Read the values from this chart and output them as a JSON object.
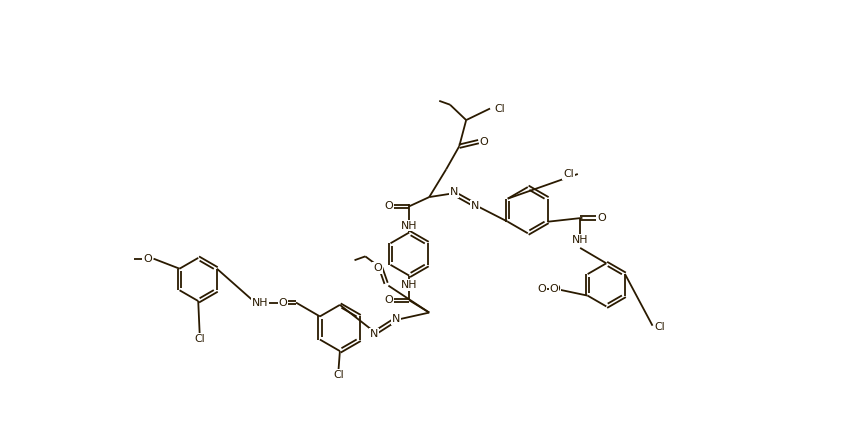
{
  "bg_color": "#ffffff",
  "bond_color": "#2a1a00",
  "figsize": [
    8.42,
    4.36
  ],
  "dpi": 100,
  "xlim": [
    0,
    842
  ],
  "ylim": [
    0,
    436
  ]
}
